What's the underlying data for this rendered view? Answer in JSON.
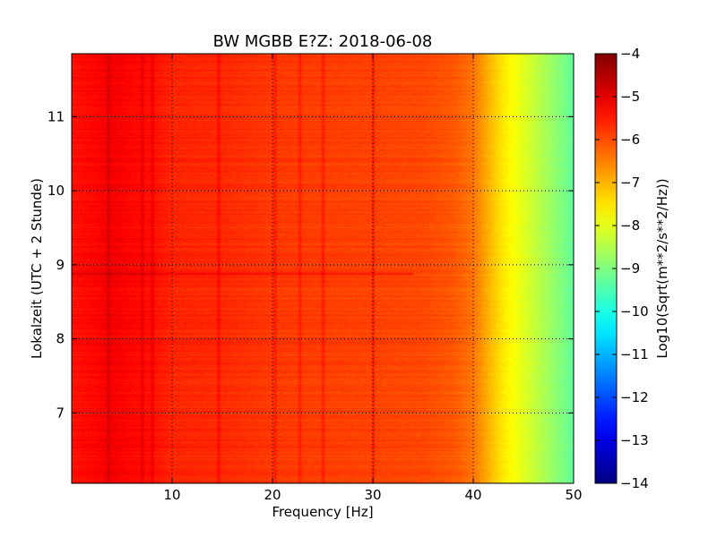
{
  "chart_data": {
    "type": "heatmap",
    "title": "BW MGBB E?Z: 2018-06-08",
    "xlabel": "Frequency [Hz]",
    "ylabel": "Lokalzeit (UTC + 2 Stunde)",
    "colorbar_label": "Log10(Sqrt(m**2/s**2/Hz))",
    "xlim": [
      0,
      50
    ],
    "ylim": [
      11.85,
      6.05
    ],
    "y_inverted": true,
    "x_ticks": [
      "10",
      "20",
      "30",
      "40",
      "50"
    ],
    "y_ticks": [
      "7",
      "8",
      "9",
      "10",
      "11"
    ],
    "colorbar_range": [
      -14,
      -4
    ],
    "colorbar_ticks": [
      "-4",
      "-5",
      "-6",
      "-7",
      "-8",
      "-9",
      "-10",
      "-11",
      "-12",
      "-13",
      "-14"
    ],
    "colormap": "jet",
    "grid": true,
    "spectral_profile": {
      "frequency_hz": [
        0,
        2,
        4,
        6,
        8,
        10,
        15,
        20,
        25,
        30,
        35,
        38,
        40,
        41,
        42,
        43,
        44,
        45,
        46,
        47,
        48,
        49,
        50
      ],
      "log10_amplitude": [
        -5.4,
        -5.3,
        -5.15,
        -5.3,
        -5.4,
        -5.6,
        -5.65,
        -5.8,
        -5.85,
        -5.9,
        -5.95,
        -6.1,
        -6.4,
        -6.8,
        -7.2,
        -7.55,
        -7.8,
        -8.05,
        -8.3,
        -8.55,
        -8.8,
        -9.05,
        -9.3
      ]
    },
    "spectral_lines_hz": [
      3.6,
      7.0,
      8.0,
      14.6,
      20.2,
      22.7,
      25.0,
      30.0
    ],
    "strong_time_band_h": 8.88
  }
}
